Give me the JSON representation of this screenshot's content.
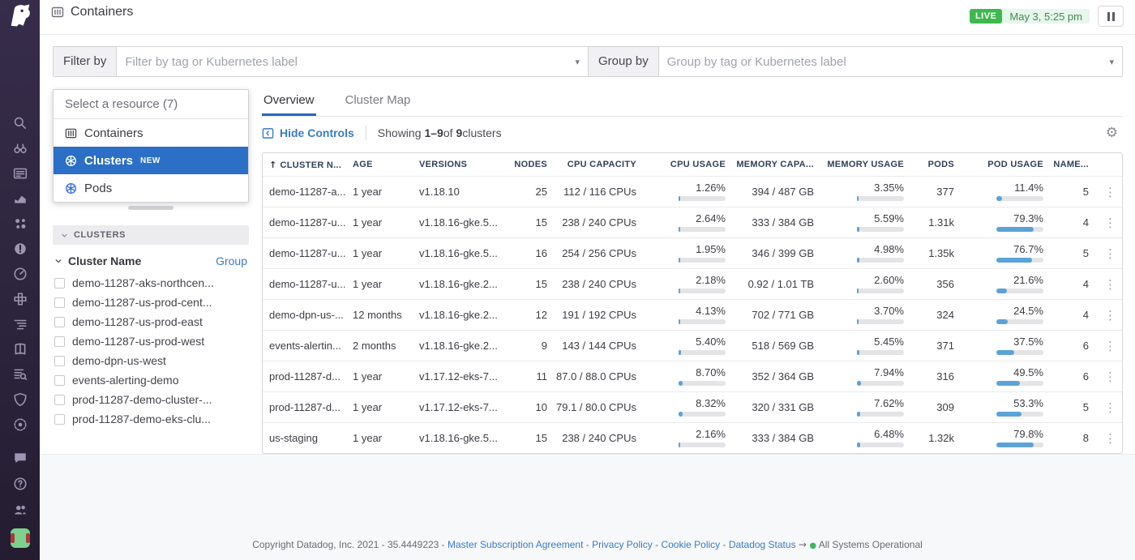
{
  "colors": {
    "accent_blue": "#2b6fc7",
    "link_blue": "#3a7bc8",
    "bar_fill": "#5ba3d7",
    "live_green": "#3eb94f",
    "status_green": "#3eb760",
    "k8s_blue": "#326ce5"
  },
  "sidebar": {
    "top_icons": [
      "search",
      "watchdog",
      "events",
      "metrics",
      "processes",
      "monitors",
      "dashboards",
      "integrations",
      "apm",
      "notebooks",
      "logs",
      "security",
      "compliance"
    ],
    "bottom_icons": [
      "chat",
      "help",
      "team"
    ]
  },
  "topbar": {
    "title": "Containers",
    "live_label": "LIVE",
    "time": "May 3, 5:25 pm"
  },
  "filters": {
    "filter_label": "Filter by",
    "filter_placeholder": "Filter by tag or Kubernetes label",
    "group_label": "Group by",
    "group_placeholder": "Group by tag or Kubernetes label"
  },
  "resource_panel": {
    "header": "Select a resource (7)",
    "items": [
      {
        "label": "Containers",
        "icon": "containers",
        "selected": false
      },
      {
        "label": "Clusters",
        "icon": "k8s",
        "badge": "NEW",
        "selected": true
      },
      {
        "label": "Pods",
        "icon": "k8s",
        "selected": false
      }
    ]
  },
  "facets": {
    "section_label": "CLUSTERS",
    "facet_title": "Cluster Name",
    "group_action": "Group",
    "items": [
      "demo-11287-aks-northcen...",
      "demo-11287-us-prod-cent...",
      "demo-11287-us-prod-east",
      "demo-11287-us-prod-west",
      "demo-dpn-us-west",
      "events-alerting-demo",
      "prod-11287-demo-cluster-...",
      "prod-11287-demo-eks-clu..."
    ]
  },
  "tabs": [
    {
      "label": "Overview",
      "active": true
    },
    {
      "label": "Cluster Map",
      "active": false
    }
  ],
  "controls": {
    "hide_controls": "Hide Controls",
    "showing_prefix": "Showing",
    "showing_range": "1–9",
    "showing_of": "of",
    "showing_total": "9",
    "showing_unit": "clusters"
  },
  "table": {
    "sort_icon": "↑",
    "columns": [
      {
        "key": "name",
        "label": "CLUSTER N..."
      },
      {
        "key": "age",
        "label": "AGE"
      },
      {
        "key": "versions",
        "label": "VERSIONS"
      },
      {
        "key": "nodes",
        "label": "NODES"
      },
      {
        "key": "cpu_capacity",
        "label": "CPU CAPACITY"
      },
      {
        "key": "cpu_usage",
        "label": "CPU USAGE"
      },
      {
        "key": "mem_capacity",
        "label": "MEMORY CAPA..."
      },
      {
        "key": "mem_usage",
        "label": "MEMORY USAGE"
      },
      {
        "key": "pods",
        "label": "PODS"
      },
      {
        "key": "pod_usage",
        "label": "POD USAGE"
      },
      {
        "key": "namespaces",
        "label": "NAME..."
      }
    ],
    "rows": [
      {
        "name": "demo-11287-a...",
        "age": "1 year",
        "versions": "v1.18.10",
        "nodes": "25",
        "cpu_capacity": "112 / 116 CPUs",
        "cpu_usage": "1.26%",
        "mem_capacity": "394 / 487 GB",
        "mem_usage": "3.35%",
        "pods": "377",
        "pod_usage": "11.4%",
        "namespaces": "5"
      },
      {
        "name": "demo-11287-u...",
        "age": "1 year",
        "versions": "v1.18.16-gke.5...",
        "nodes": "15",
        "cpu_capacity": "238 / 240 CPUs",
        "cpu_usage": "2.64%",
        "mem_capacity": "333 / 384 GB",
        "mem_usage": "5.59%",
        "pods": "1.31k",
        "pod_usage": "79.3%",
        "namespaces": "4"
      },
      {
        "name": "demo-11287-u...",
        "age": "1 year",
        "versions": "v1.18.16-gke.5...",
        "nodes": "16",
        "cpu_capacity": "254 / 256 CPUs",
        "cpu_usage": "1.95%",
        "mem_capacity": "346 / 399 GB",
        "mem_usage": "4.98%",
        "pods": "1.35k",
        "pod_usage": "76.7%",
        "namespaces": "5"
      },
      {
        "name": "demo-11287-u...",
        "age": "1 year",
        "versions": "v1.18.16-gke.2...",
        "nodes": "15",
        "cpu_capacity": "238 / 240 CPUs",
        "cpu_usage": "2.18%",
        "mem_capacity": "0.92 / 1.01 TB",
        "mem_usage": "2.60%",
        "pods": "356",
        "pod_usage": "21.6%",
        "namespaces": "4"
      },
      {
        "name": "demo-dpn-us-...",
        "age": "12 months",
        "versions": "v1.18.16-gke.2...",
        "nodes": "12",
        "cpu_capacity": "191 / 192 CPUs",
        "cpu_usage": "4.13%",
        "mem_capacity": "702 / 771 GB",
        "mem_usage": "3.70%",
        "pods": "324",
        "pod_usage": "24.5%",
        "namespaces": "4"
      },
      {
        "name": "events-alertin...",
        "age": "2 months",
        "versions": "v1.18.16-gke.2...",
        "nodes": "9",
        "cpu_capacity": "143 / 144 CPUs",
        "cpu_usage": "5.40%",
        "mem_capacity": "518 / 569 GB",
        "mem_usage": "5.45%",
        "pods": "371",
        "pod_usage": "37.5%",
        "namespaces": "6"
      },
      {
        "name": "prod-11287-d...",
        "age": "1 year",
        "versions": "v1.17.12-eks-7...",
        "nodes": "11",
        "cpu_capacity": "87.0 / 88.0 CPUs",
        "cpu_usage": "8.70%",
        "mem_capacity": "352 / 364 GB",
        "mem_usage": "7.94%",
        "pods": "316",
        "pod_usage": "49.5%",
        "namespaces": "6"
      },
      {
        "name": "prod-11287-d...",
        "age": "1 year",
        "versions": "v1.17.12-eks-7...",
        "nodes": "10",
        "cpu_capacity": "79.1 / 80.0 CPUs",
        "cpu_usage": "8.32%",
        "mem_capacity": "320 / 331 GB",
        "mem_usage": "7.62%",
        "pods": "309",
        "pod_usage": "53.3%",
        "namespaces": "5"
      },
      {
        "name": "us-staging",
        "age": "1 year",
        "versions": "v1.18.16-gke.5...",
        "nodes": "15",
        "cpu_capacity": "238 / 240 CPUs",
        "cpu_usage": "2.16%",
        "mem_capacity": "333 / 384 GB",
        "mem_usage": "6.48%",
        "pods": "1.32k",
        "pod_usage": "79.8%",
        "namespaces": "8"
      }
    ]
  },
  "footer": {
    "copyright": "Copyright Datadog, Inc. 2021",
    "version": "35.4449223",
    "separator": "-",
    "links": [
      "Master Subscription Agreement",
      "Privacy Policy",
      "Cookie Policy",
      "Datadog Status"
    ],
    "arrow": "→",
    "status": "All Systems Operational"
  }
}
